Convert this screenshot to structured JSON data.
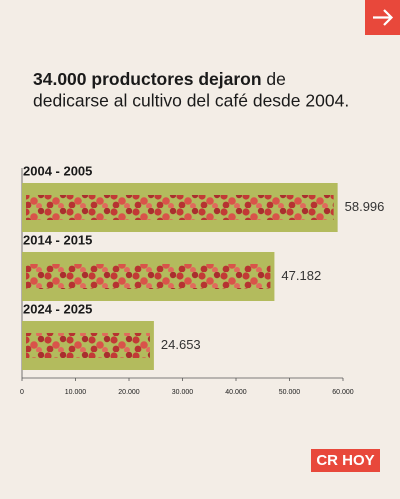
{
  "chart_data": {
    "type": "bar",
    "orientation": "horizontal",
    "title": {
      "bold": "34.000 productores dejaron",
      "regular": " de",
      "line2": "dedicarse al cultivo del café desde 2004."
    },
    "categories": [
      "2004 - 2005",
      "2014 - 2015",
      "2024 - 2025"
    ],
    "values": [
      58996,
      47182,
      24653
    ],
    "value_labels": [
      "58.996",
      "47.182",
      "24.653"
    ],
    "color": "#b3bb5d",
    "xlim": [
      0,
      60000
    ],
    "xticks": [
      0,
      {
        "value": 10000,
        "label": "10.000"
      },
      {
        "value": 20000,
        "label": "20.000"
      },
      {
        "value": 30000,
        "label": "30.000"
      },
      {
        "value": 40000,
        "label": "40.000"
      },
      {
        "value": 50000,
        "label": "50.000"
      },
      {
        "value": 60000,
        "label": "60.000"
      }
    ]
  },
  "brand": "CR HOY"
}
